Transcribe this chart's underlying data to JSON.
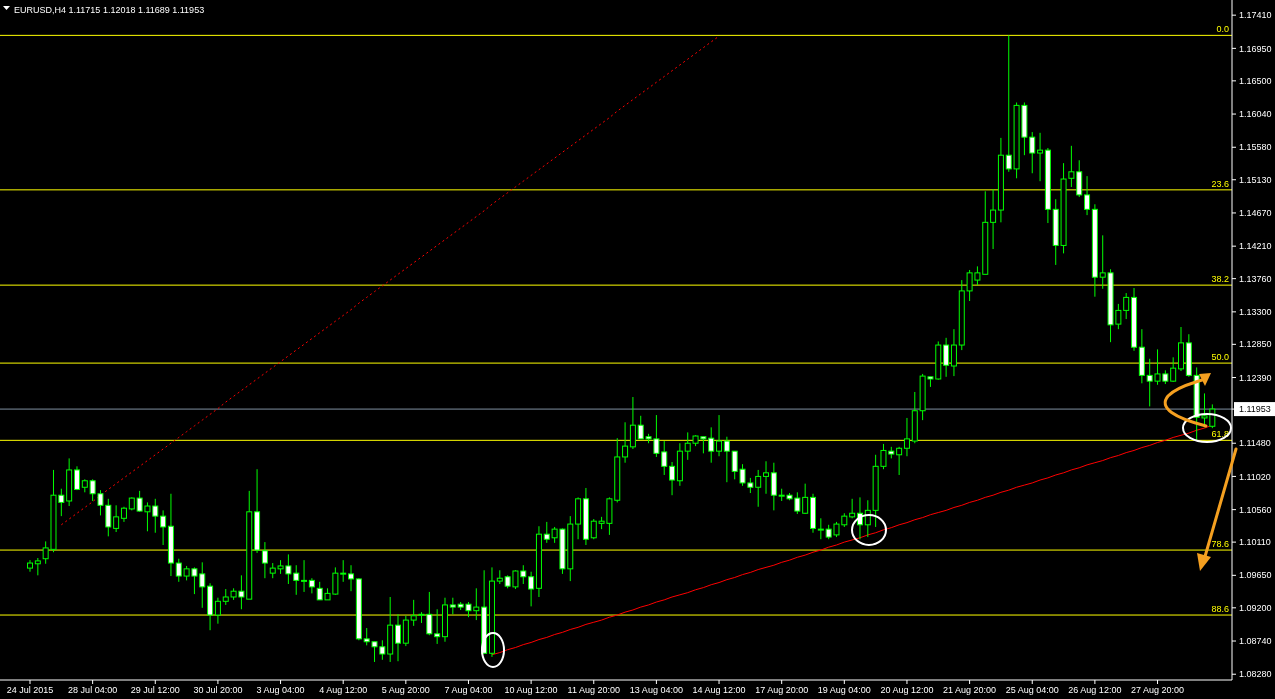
{
  "chart_data": {
    "type": "candlestick",
    "title": "EURUSD,H4 1.11715 1.12018 1.11689 1.11953",
    "color": "#00ff00",
    "categories": [
      "24 Jul 2015",
      null,
      null,
      null,
      null,
      null,
      null,
      null,
      "28 Jul 04:00",
      null,
      null,
      null,
      null,
      null,
      null,
      null,
      "29 Jul 12:00",
      null,
      null,
      null,
      null,
      null,
      null,
      null,
      "30 Jul 20:00",
      null,
      null,
      null,
      null,
      null,
      null,
      null,
      "3 Aug 04:00",
      null,
      null,
      null,
      null,
      null,
      null,
      null,
      "4 Aug 12:00",
      null,
      null,
      null,
      null,
      null,
      null,
      null,
      "5 Aug 20:00",
      null,
      null,
      null,
      null,
      null,
      null,
      null,
      "7 Aug 04:00",
      null,
      null,
      null,
      null,
      null,
      null,
      null,
      "10 Aug 12:00",
      null,
      null,
      null,
      null,
      null,
      null,
      null,
      "11 Aug 20:00",
      null,
      null,
      null,
      null,
      null,
      null,
      null,
      "13 Aug 04:00",
      null,
      null,
      null,
      null,
      null,
      null,
      null,
      "14 Aug 12:00",
      null,
      null,
      null,
      null,
      null,
      null,
      null,
      "17 Aug 20:00",
      null,
      null,
      null,
      null,
      null,
      null,
      null,
      "19 Aug 04:00",
      null,
      null,
      null,
      null,
      null,
      null,
      null,
      "20 Aug 12:00",
      null,
      null,
      null,
      null,
      null,
      null,
      null,
      "21 Aug 20:00",
      null,
      null,
      null,
      null,
      null,
      null,
      null,
      "25 Aug 04:00",
      null,
      null,
      null,
      null,
      null,
      null,
      null,
      "26 Aug 12:00",
      null,
      null,
      null,
      null,
      null,
      null,
      null,
      "27 Aug 20:00",
      null,
      null,
      null,
      null,
      null,
      null,
      null
    ],
    "ohlc": [
      [
        1.0975,
        1.0986,
        1.097,
        1.0982
      ],
      [
        1.0981,
        1.0989,
        1.0965,
        1.0985
      ],
      [
        1.0988,
        1.1012,
        1.0981,
        1.1003
      ],
      [
        1.1001,
        1.1111,
        1.0997,
        1.1076
      ],
      [
        1.1076,
        1.1085,
        1.1047,
        1.1066
      ],
      [
        1.1068,
        1.1127,
        1.1061,
        1.1111
      ],
      [
        1.1111,
        1.1116,
        1.1083,
        1.1084
      ],
      [
        1.1087,
        1.1098,
        1.108,
        1.1096
      ],
      [
        1.1096,
        1.1098,
        1.1068,
        1.1078
      ],
      [
        1.1078,
        1.1083,
        1.1048,
        1.1062
      ],
      [
        1.1062,
        1.1071,
        1.1019,
        1.1032
      ],
      [
        1.103,
        1.1062,
        1.1025,
        1.1046
      ],
      [
        1.1044,
        1.106,
        1.1039,
        1.1058
      ],
      [
        1.1057,
        1.1073,
        1.1055,
        1.1072
      ],
      [
        1.1072,
        1.1082,
        1.1053,
        1.1054
      ],
      [
        1.1053,
        1.1066,
        1.1026,
        1.1061
      ],
      [
        1.1061,
        1.1071,
        1.1024,
        1.1047
      ],
      [
        1.1047,
        1.1055,
        1.1007,
        1.1032
      ],
      [
        1.1033,
        1.1078,
        1.0964,
        1.0982
      ],
      [
        1.0982,
        1.0988,
        1.0956,
        1.0964
      ],
      [
        1.0964,
        1.0978,
        1.0958,
        1.0974
      ],
      [
        1.0974,
        1.0976,
        1.0939,
        1.0964
      ],
      [
        1.0967,
        1.0983,
        1.092,
        1.0949
      ],
      [
        1.095,
        1.0954,
        1.0889,
        1.091
      ],
      [
        1.091,
        1.0934,
        1.0898,
        1.0929
      ],
      [
        1.0929,
        1.0946,
        1.0924,
        1.0935
      ],
      [
        1.0935,
        1.0947,
        1.0931,
        1.0943
      ],
      [
        1.0943,
        1.0965,
        1.0918,
        1.0935
      ],
      [
        1.0932,
        1.1082,
        1.0932,
        1.1053
      ],
      [
        1.1053,
        1.1112,
        1.0996,
        1.1
      ],
      [
        1.0999,
        1.1011,
        1.0961,
        1.0982
      ],
      [
        1.0968,
        1.0982,
        1.0961,
        1.0975
      ],
      [
        1.0974,
        1.0986,
        1.0967,
        1.0978
      ],
      [
        1.0978,
        1.0994,
        1.0953,
        1.0967
      ],
      [
        1.0968,
        1.0979,
        1.0938,
        1.0958
      ],
      [
        1.0958,
        1.0986,
        1.0942,
        1.0958
      ],
      [
        1.0958,
        1.0961,
        1.094,
        1.0949
      ],
      [
        1.0947,
        1.0956,
        1.0931,
        1.0931
      ],
      [
        1.0931,
        1.0947,
        1.0931,
        1.094
      ],
      [
        1.0939,
        1.0976,
        1.0938,
        1.0968
      ],
      [
        1.0968,
        1.0986,
        1.0956,
        1.0968
      ],
      [
        1.0967,
        1.0979,
        1.0943,
        1.096
      ],
      [
        1.096,
        1.0961,
        1.0875,
        1.0877
      ],
      [
        1.0877,
        1.0892,
        1.0868,
        1.0873
      ],
      [
        1.0873,
        1.0873,
        1.0845,
        1.0866
      ],
      [
        1.0866,
        1.0875,
        1.0848,
        1.0856
      ],
      [
        1.0856,
        1.0935,
        1.0845,
        1.0896
      ],
      [
        1.0896,
        1.0911,
        1.0846,
        1.0871
      ],
      [
        1.0871,
        1.0909,
        1.0867,
        1.0903
      ],
      [
        1.0903,
        1.0931,
        1.0895,
        1.0909
      ],
      [
        1.0911,
        1.0914,
        1.0899,
        1.0911
      ],
      [
        1.0911,
        1.0942,
        1.0882,
        1.0884
      ],
      [
        1.0884,
        1.0918,
        1.087,
        1.088
      ],
      [
        1.088,
        1.0934,
        1.0873,
        1.0924
      ],
      [
        1.0924,
        1.0934,
        1.0911,
        1.0921
      ],
      [
        1.0925,
        1.0928,
        1.0917,
        1.0921
      ],
      [
        1.0925,
        1.0928,
        1.0907,
        1.0916
      ],
      [
        1.0916,
        1.0947,
        1.0903,
        1.0921
      ],
      [
        1.0921,
        1.0972,
        1.0857,
        1.0857
      ],
      [
        1.0857,
        1.0976,
        1.0852,
        1.0957
      ],
      [
        1.0957,
        1.0972,
        1.0953,
        1.0961
      ],
      [
        1.0963,
        1.0965,
        1.0947,
        1.095
      ],
      [
        1.0949,
        1.0972,
        1.0946,
        1.0971
      ],
      [
        1.0971,
        1.0979,
        1.0953,
        1.0963
      ],
      [
        1.0963,
        1.097,
        1.0922,
        1.0946
      ],
      [
        1.0947,
        1.1033,
        1.0935,
        1.1022
      ],
      [
        1.1022,
        1.1039,
        1.101,
        1.1015
      ],
      [
        1.1017,
        1.1032,
        1.101,
        1.1029
      ],
      [
        1.1029,
        1.103,
        1.0967,
        1.0974
      ],
      [
        1.0974,
        1.1047,
        1.0957,
        1.1036
      ],
      [
        1.1036,
        1.1073,
        1.1015,
        1.1071
      ],
      [
        1.1071,
        1.1086,
        1.1007,
        1.1015
      ],
      [
        1.1017,
        1.1043,
        1.1015,
        1.104
      ],
      [
        1.1037,
        1.1046,
        1.1029,
        1.104
      ],
      [
        1.1037,
        1.1073,
        1.1021,
        1.1071
      ],
      [
        1.1069,
        1.1155,
        1.1066,
        1.1129
      ],
      [
        1.1129,
        1.1177,
        1.1121,
        1.1144
      ],
      [
        1.1143,
        1.1212,
        1.114,
        1.1173
      ],
      [
        1.1173,
        1.1186,
        1.1154,
        1.1154
      ],
      [
        1.1157,
        1.1161,
        1.1148,
        1.1154
      ],
      [
        1.1154,
        1.1187,
        1.1129,
        1.1134
      ],
      [
        1.1136,
        1.1151,
        1.1104,
        1.1116
      ],
      [
        1.1116,
        1.1122,
        1.1076,
        1.1097
      ],
      [
        1.1096,
        1.1148,
        1.1089,
        1.1137
      ],
      [
        1.1137,
        1.1163,
        1.1125,
        1.1148
      ],
      [
        1.1148,
        1.1159,
        1.1144,
        1.1158
      ],
      [
        1.1157,
        1.1157,
        1.1134,
        1.1154
      ],
      [
        1.1155,
        1.117,
        1.1121,
        1.1137
      ],
      [
        1.1137,
        1.1187,
        1.113,
        1.1151
      ],
      [
        1.1151,
        1.1157,
        1.1094,
        1.1137
      ],
      [
        1.1137,
        1.1137,
        1.1098,
        1.1109
      ],
      [
        1.1112,
        1.1119,
        1.1089,
        1.1093
      ],
      [
        1.1093,
        1.11,
        1.1079,
        1.1087
      ],
      [
        1.1087,
        1.1111,
        1.106,
        1.1102
      ],
      [
        1.1102,
        1.1123,
        1.1078,
        1.1107
      ],
      [
        1.1107,
        1.1121,
        1.1055,
        1.1076
      ],
      [
        1.1076,
        1.1085,
        1.1068,
        1.1076
      ],
      [
        1.1076,
        1.1079,
        1.1069,
        1.1071
      ],
      [
        1.1072,
        1.108,
        1.105,
        1.1054
      ],
      [
        1.1051,
        1.1092,
        1.105,
        1.1073
      ],
      [
        1.1073,
        1.1078,
        1.1024,
        1.103
      ],
      [
        1.1029,
        1.1044,
        1.1015,
        1.1029
      ],
      [
        1.1029,
        1.1035,
        1.1015,
        1.1018
      ],
      [
        1.1021,
        1.1039,
        1.1018,
        1.1036
      ],
      [
        1.1035,
        1.1051,
        1.1032,
        1.1047
      ],
      [
        1.1046,
        1.1071,
        1.1044,
        1.1051
      ],
      [
        1.1051,
        1.1073,
        1.1015,
        1.1035
      ],
      [
        1.1035,
        1.1069,
        1.1018,
        1.1055
      ],
      [
        1.1055,
        1.1132,
        1.1032,
        1.1116
      ],
      [
        1.1116,
        1.1147,
        1.1112,
        1.1138
      ],
      [
        1.1137,
        1.1143,
        1.1127,
        1.1133
      ],
      [
        1.1132,
        1.1143,
        1.1104,
        1.1141
      ],
      [
        1.1141,
        1.1183,
        1.113,
        1.1154
      ],
      [
        1.1151,
        1.1219,
        1.1148,
        1.1193
      ],
      [
        1.1193,
        1.1244,
        1.118,
        1.1241
      ],
      [
        1.124,
        1.124,
        1.1226,
        1.1237
      ],
      [
        1.1237,
        1.1289,
        1.1236,
        1.1284
      ],
      [
        1.1284,
        1.1294,
        1.124,
        1.1256
      ],
      [
        1.1255,
        1.1306,
        1.1241,
        1.1284
      ],
      [
        1.1284,
        1.1374,
        1.1277,
        1.1359
      ],
      [
        1.1359,
        1.1388,
        1.1345,
        1.1384
      ],
      [
        1.1374,
        1.1393,
        1.1367,
        1.1384
      ],
      [
        1.1382,
        1.1497,
        1.1382,
        1.1454
      ],
      [
        1.1454,
        1.15,
        1.1417,
        1.1471
      ],
      [
        1.1471,
        1.1571,
        1.1454,
        1.1547
      ],
      [
        1.1547,
        1.1713,
        1.1524,
        1.1528
      ],
      [
        1.1528,
        1.162,
        1.1515,
        1.1616
      ],
      [
        1.1616,
        1.162,
        1.1547,
        1.1572
      ],
      [
        1.1572,
        1.1579,
        1.1522,
        1.155
      ],
      [
        1.155,
        1.1578,
        1.1511,
        1.1554
      ],
      [
        1.1554,
        1.1557,
        1.1453,
        1.1472
      ],
      [
        1.1472,
        1.1486,
        1.1395,
        1.1422
      ],
      [
        1.1422,
        1.1536,
        1.1411,
        1.1514
      ],
      [
        1.1515,
        1.156,
        1.1503,
        1.1524
      ],
      [
        1.1524,
        1.154,
        1.1489,
        1.1492
      ],
      [
        1.1492,
        1.1518,
        1.1464,
        1.1472
      ],
      [
        1.1472,
        1.1479,
        1.1351,
        1.1378
      ],
      [
        1.1378,
        1.1436,
        1.1362,
        1.1384
      ],
      [
        1.1384,
        1.1389,
        1.1288,
        1.1312
      ],
      [
        1.1313,
        1.1341,
        1.1306,
        1.1332
      ],
      [
        1.1332,
        1.1356,
        1.132,
        1.135
      ],
      [
        1.135,
        1.1363,
        1.1276,
        1.1281
      ],
      [
        1.1281,
        1.1306,
        1.1231,
        1.1242
      ],
      [
        1.1242,
        1.1265,
        1.1199,
        1.1234
      ],
      [
        1.1234,
        1.1278,
        1.1229,
        1.1244
      ],
      [
        1.1244,
        1.1249,
        1.123,
        1.1234
      ],
      [
        1.1234,
        1.1267,
        1.1233,
        1.1252
      ],
      [
        1.1251,
        1.1309,
        1.1248,
        1.1287
      ],
      [
        1.1287,
        1.1299,
        1.124,
        1.1242
      ],
      [
        1.1242,
        1.1253,
        1.1152,
        1.1184
      ],
      [
        1.1183,
        1.1217,
        1.117,
        1.1186
      ],
      [
        1.11715,
        1.12018,
        1.11689,
        1.11953
      ]
    ],
    "series": [
      {
        "type": "line",
        "color": "#ff0000",
        "line_style": "dotted",
        "values": [
          null,
          null,
          null,
          null,
          1.1035,
          1.1043,
          1.1051,
          1.1059,
          1.1067,
          1.1076,
          1.1084,
          1.1092,
          1.11,
          1.1108,
          1.1116,
          1.1124,
          1.1132,
          1.114,
          1.1148,
          1.1156,
          1.1164,
          1.1172,
          1.118,
          1.1188,
          1.1196,
          1.1205,
          1.1213,
          1.1221,
          1.1229,
          1.1237,
          1.1245,
          1.1253,
          1.1261,
          1.1269,
          1.1277,
          1.1285,
          1.1293,
          1.1301,
          1.1309,
          1.1317,
          1.1325,
          1.1333,
          1.1342,
          1.135,
          1.1358,
          1.1366,
          1.1374,
          1.1382,
          1.139,
          1.1398,
          1.1406,
          1.1414,
          1.1422,
          1.143,
          1.1438,
          1.1446,
          1.1454,
          1.1462,
          1.147,
          1.1479,
          1.1487,
          1.1495,
          1.1503,
          1.1511,
          1.1519,
          1.1527,
          1.1535,
          1.1543,
          1.1551,
          1.1559,
          1.1567,
          1.1575,
          1.1583,
          1.1591,
          1.1599,
          1.1608,
          1.1616,
          1.1624,
          1.1632,
          1.164,
          1.1648,
          1.1656,
          1.1664,
          1.1672,
          1.168,
          1.1688,
          1.1696,
          1.1704,
          1.1712,
          null,
          null,
          null,
          null,
          null,
          null,
          null,
          null,
          null,
          null,
          null,
          null,
          null,
          null,
          null,
          null,
          null,
          null,
          null,
          null,
          null,
          null,
          null,
          null,
          null,
          null,
          null,
          null,
          null,
          null,
          null,
          null,
          null,
          null,
          null,
          null,
          null,
          null,
          null,
          null,
          null,
          null,
          null,
          null,
          null,
          null,
          null,
          null,
          null,
          null,
          null,
          null,
          null,
          null,
          null,
          null,
          null,
          null,
          null,
          null,
          null,
          null,
          null
        ]
      },
      {
        "type": "line",
        "color": "#ff0000",
        "line_style": "solid",
        "values": [
          null,
          null,
          null,
          null,
          null,
          null,
          null,
          null,
          null,
          null,
          null,
          null,
          null,
          null,
          null,
          null,
          null,
          null,
          null,
          null,
          null,
          null,
          null,
          null,
          null,
          null,
          null,
          null,
          null,
          null,
          null,
          null,
          null,
          null,
          null,
          null,
          null,
          null,
          null,
          null,
          null,
          null,
          null,
          null,
          null,
          null,
          null,
          null,
          null,
          null,
          null,
          null,
          null,
          null,
          null,
          null,
          null,
          null,
          null,
          1.0855,
          1.0858,
          1.0862,
          1.0865,
          1.0869,
          1.0872,
          1.0876,
          1.0879,
          1.0883,
          1.0886,
          1.089,
          1.0893,
          1.0897,
          1.09,
          1.0903,
          1.0907,
          1.091,
          1.0914,
          1.0917,
          1.0921,
          1.0924,
          1.0928,
          1.0931,
          1.0935,
          1.0938,
          1.0941,
          1.0945,
          1.0948,
          1.0952,
          1.0955,
          1.0959,
          1.0962,
          1.0966,
          1.0969,
          1.0973,
          1.0976,
          1.0979,
          1.0983,
          1.0986,
          1.099,
          1.0993,
          1.0997,
          1.1,
          1.1004,
          1.1007,
          1.1011,
          1.1014,
          1.1017,
          1.1021,
          1.1024,
          1.1028,
          1.1031,
          1.1035,
          1.1038,
          1.1042,
          1.1045,
          1.1049,
          1.1052,
          1.1055,
          1.1059,
          1.1062,
          1.1066,
          1.1069,
          1.1073,
          1.1076,
          1.108,
          1.1083,
          1.1087,
          1.109,
          1.1093,
          1.1097,
          1.11,
          1.1104,
          1.1107,
          1.1111,
          1.1114,
          1.1118,
          1.1121,
          1.1124,
          1.1128,
          1.1131,
          1.1135,
          1.1138,
          1.1142,
          1.1145,
          1.1149,
          1.1152,
          1.1156,
          1.1159,
          1.1162,
          1.1166,
          1.1169,
          1.1173
        ]
      }
    ],
    "ref_lines": [
      {
        "axis": "y",
        "value": 1.1713,
        "color": "#ffff00"
      },
      {
        "axis": "y",
        "value": 1.1499,
        "color": "#ffff00"
      },
      {
        "axis": "y",
        "value": 1.1367,
        "color": "#ffff00"
      },
      {
        "axis": "y",
        "value": 1.1259,
        "color": "#ffff00"
      },
      {
        "axis": "y",
        "value": 1.1152,
        "color": "#ffff00"
      },
      {
        "axis": "y",
        "value": 1.1,
        "color": "#ffff00"
      },
      {
        "axis": "y",
        "value": 1.091,
        "color": "#ffff00"
      },
      {
        "axis": "y",
        "value": 1.11953,
        "color": "#7f8fa0"
      }
    ],
    "annotations": [
      {
        "text": "0.0",
        "y": 1.1713
      },
      {
        "text": "23.6",
        "y": 1.1499
      },
      {
        "text": "38.2",
        "y": 1.1367
      },
      {
        "text": "50.0",
        "y": 1.1259
      },
      {
        "text": "61.8",
        "y": 1.1152
      },
      {
        "text": "78.6",
        "y": 1.1
      },
      {
        "text": "88.6",
        "y": 1.091
      }
    ],
    "ylim": [
      1.082,
      1.1762
    ],
    "yticks": [
      {
        "value": 1.0828,
        "label": "1.08280"
      },
      {
        "value": 1.0874,
        "label": "1.08740"
      },
      {
        "value": 1.092,
        "label": "1.09200"
      },
      {
        "value": 1.0965,
        "label": "1.09650"
      },
      {
        "value": 1.1011,
        "label": "1.10110"
      },
      {
        "value": 1.1056,
        "label": "1.10560"
      },
      {
        "value": 1.1102,
        "label": "1.11020"
      },
      {
        "value": 1.1148,
        "label": "1.11480"
      },
      {
        "value": 1.11953,
        "label": "1.11953"
      },
      {
        "value": 1.1239,
        "label": "1.12390"
      },
      {
        "value": 1.1285,
        "label": "1.12850"
      },
      {
        "value": 1.133,
        "label": "1.13300"
      },
      {
        "value": 1.1376,
        "label": "1.13760"
      },
      {
        "value": 1.1421,
        "label": "1.14210"
      },
      {
        "value": 1.1467,
        "label": "1.14670"
      },
      {
        "value": 1.1513,
        "label": "1.15130"
      },
      {
        "value": 1.1558,
        "label": "1.15580"
      },
      {
        "value": 1.1604,
        "label": "1.16040"
      },
      {
        "value": 1.165,
        "label": "1.16500"
      },
      {
        "value": 1.1695,
        "label": "1.16950"
      },
      {
        "value": 1.1741,
        "label": "1.17410"
      }
    ]
  }
}
